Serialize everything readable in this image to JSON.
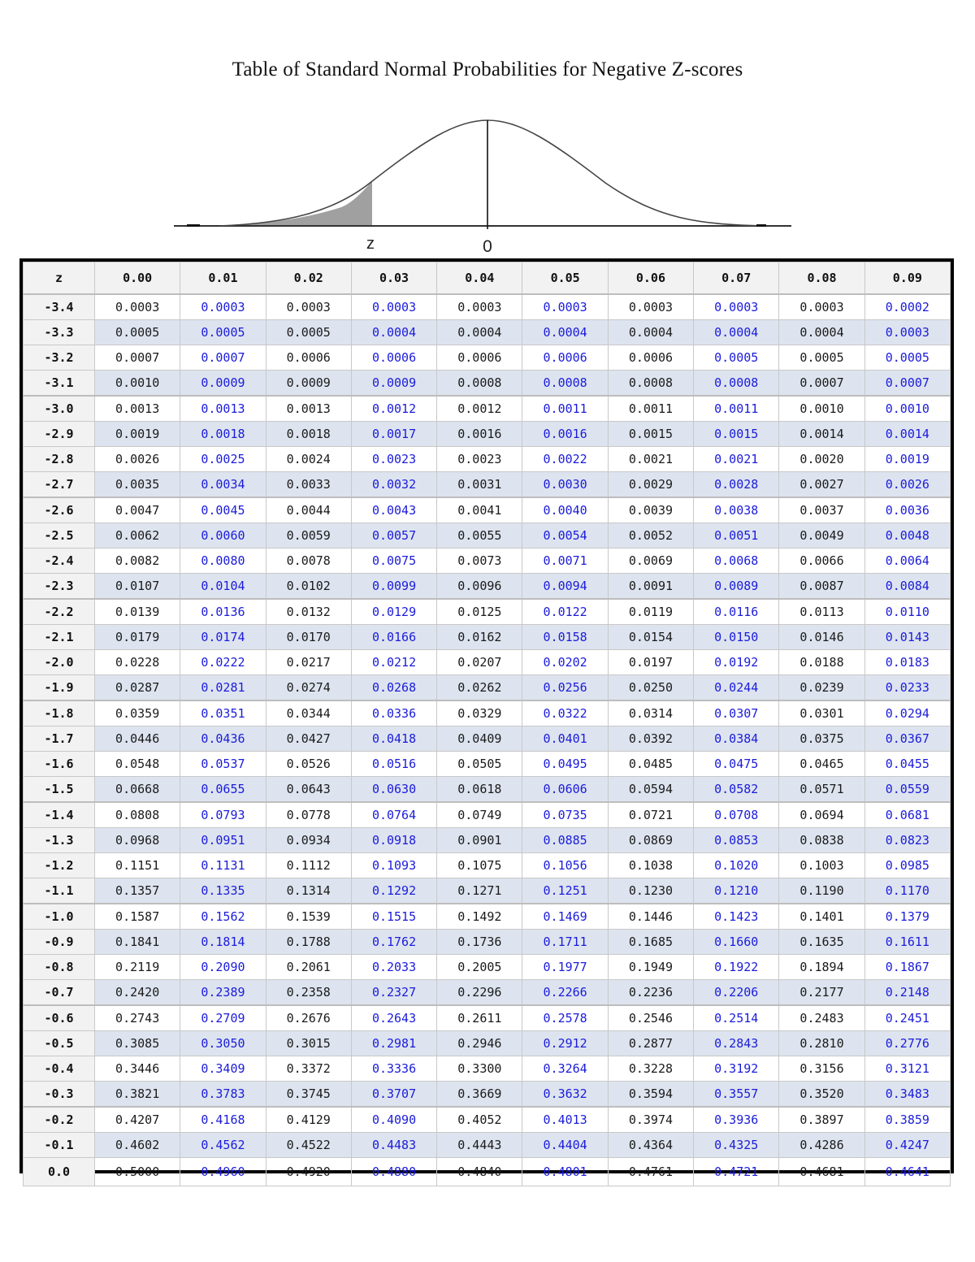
{
  "title": "Table of Standard Normal Probabilities for Negative Z-scores",
  "figure": {
    "shaded_label": "z",
    "center_label": "0",
    "fill_color": "#a0a0a0"
  },
  "table": {
    "header_z": "z",
    "columns": [
      "0.00",
      "0.01",
      "0.02",
      "0.03",
      "0.04",
      "0.05",
      "0.06",
      "0.07",
      "0.08",
      "0.09"
    ],
    "rows": [
      {
        "z": "-3.4",
        "v": [
          "0.0003",
          "0.0003",
          "0.0003",
          "0.0003",
          "0.0003",
          "0.0003",
          "0.0003",
          "0.0003",
          "0.0003",
          "0.0002"
        ]
      },
      {
        "z": "-3.3",
        "v": [
          "0.0005",
          "0.0005",
          "0.0005",
          "0.0004",
          "0.0004",
          "0.0004",
          "0.0004",
          "0.0004",
          "0.0004",
          "0.0003"
        ]
      },
      {
        "z": "-3.2",
        "v": [
          "0.0007",
          "0.0007",
          "0.0006",
          "0.0006",
          "0.0006",
          "0.0006",
          "0.0006",
          "0.0005",
          "0.0005",
          "0.0005"
        ]
      },
      {
        "z": "-3.1",
        "v": [
          "0.0010",
          "0.0009",
          "0.0009",
          "0.0009",
          "0.0008",
          "0.0008",
          "0.0008",
          "0.0008",
          "0.0007",
          "0.0007"
        ]
      },
      {
        "z": "-3.0",
        "v": [
          "0.0013",
          "0.0013",
          "0.0013",
          "0.0012",
          "0.0012",
          "0.0011",
          "0.0011",
          "0.0011",
          "0.0010",
          "0.0010"
        ]
      },
      {
        "z": "-2.9",
        "v": [
          "0.0019",
          "0.0018",
          "0.0018",
          "0.0017",
          "0.0016",
          "0.0016",
          "0.0015",
          "0.0015",
          "0.0014",
          "0.0014"
        ]
      },
      {
        "z": "-2.8",
        "v": [
          "0.0026",
          "0.0025",
          "0.0024",
          "0.0023",
          "0.0023",
          "0.0022",
          "0.0021",
          "0.0021",
          "0.0020",
          "0.0019"
        ]
      },
      {
        "z": "-2.7",
        "v": [
          "0.0035",
          "0.0034",
          "0.0033",
          "0.0032",
          "0.0031",
          "0.0030",
          "0.0029",
          "0.0028",
          "0.0027",
          "0.0026"
        ]
      },
      {
        "z": "-2.6",
        "v": [
          "0.0047",
          "0.0045",
          "0.0044",
          "0.0043",
          "0.0041",
          "0.0040",
          "0.0039",
          "0.0038",
          "0.0037",
          "0.0036"
        ]
      },
      {
        "z": "-2.5",
        "v": [
          "0.0062",
          "0.0060",
          "0.0059",
          "0.0057",
          "0.0055",
          "0.0054",
          "0.0052",
          "0.0051",
          "0.0049",
          "0.0048"
        ]
      },
      {
        "z": "-2.4",
        "v": [
          "0.0082",
          "0.0080",
          "0.0078",
          "0.0075",
          "0.0073",
          "0.0071",
          "0.0069",
          "0.0068",
          "0.0066",
          "0.0064"
        ]
      },
      {
        "z": "-2.3",
        "v": [
          "0.0107",
          "0.0104",
          "0.0102",
          "0.0099",
          "0.0096",
          "0.0094",
          "0.0091",
          "0.0089",
          "0.0087",
          "0.0084"
        ]
      },
      {
        "z": "-2.2",
        "v": [
          "0.0139",
          "0.0136",
          "0.0132",
          "0.0129",
          "0.0125",
          "0.0122",
          "0.0119",
          "0.0116",
          "0.0113",
          "0.0110"
        ]
      },
      {
        "z": "-2.1",
        "v": [
          "0.0179",
          "0.0174",
          "0.0170",
          "0.0166",
          "0.0162",
          "0.0158",
          "0.0154",
          "0.0150",
          "0.0146",
          "0.0143"
        ]
      },
      {
        "z": "-2.0",
        "v": [
          "0.0228",
          "0.0222",
          "0.0217",
          "0.0212",
          "0.0207",
          "0.0202",
          "0.0197",
          "0.0192",
          "0.0188",
          "0.0183"
        ]
      },
      {
        "z": "-1.9",
        "v": [
          "0.0287",
          "0.0281",
          "0.0274",
          "0.0268",
          "0.0262",
          "0.0256",
          "0.0250",
          "0.0244",
          "0.0239",
          "0.0233"
        ]
      },
      {
        "z": "-1.8",
        "v": [
          "0.0359",
          "0.0351",
          "0.0344",
          "0.0336",
          "0.0329",
          "0.0322",
          "0.0314",
          "0.0307",
          "0.0301",
          "0.0294"
        ]
      },
      {
        "z": "-1.7",
        "v": [
          "0.0446",
          "0.0436",
          "0.0427",
          "0.0418",
          "0.0409",
          "0.0401",
          "0.0392",
          "0.0384",
          "0.0375",
          "0.0367"
        ]
      },
      {
        "z": "-1.6",
        "v": [
          "0.0548",
          "0.0537",
          "0.0526",
          "0.0516",
          "0.0505",
          "0.0495",
          "0.0485",
          "0.0475",
          "0.0465",
          "0.0455"
        ]
      },
      {
        "z": "-1.5",
        "v": [
          "0.0668",
          "0.0655",
          "0.0643",
          "0.0630",
          "0.0618",
          "0.0606",
          "0.0594",
          "0.0582",
          "0.0571",
          "0.0559"
        ]
      },
      {
        "z": "-1.4",
        "v": [
          "0.0808",
          "0.0793",
          "0.0778",
          "0.0764",
          "0.0749",
          "0.0735",
          "0.0721",
          "0.0708",
          "0.0694",
          "0.0681"
        ]
      },
      {
        "z": "-1.3",
        "v": [
          "0.0968",
          "0.0951",
          "0.0934",
          "0.0918",
          "0.0901",
          "0.0885",
          "0.0869",
          "0.0853",
          "0.0838",
          "0.0823"
        ]
      },
      {
        "z": "-1.2",
        "v": [
          "0.1151",
          "0.1131",
          "0.1112",
          "0.1093",
          "0.1075",
          "0.1056",
          "0.1038",
          "0.1020",
          "0.1003",
          "0.0985"
        ]
      },
      {
        "z": "-1.1",
        "v": [
          "0.1357",
          "0.1335",
          "0.1314",
          "0.1292",
          "0.1271",
          "0.1251",
          "0.1230",
          "0.1210",
          "0.1190",
          "0.1170"
        ]
      },
      {
        "z": "-1.0",
        "v": [
          "0.1587",
          "0.1562",
          "0.1539",
          "0.1515",
          "0.1492",
          "0.1469",
          "0.1446",
          "0.1423",
          "0.1401",
          "0.1379"
        ]
      },
      {
        "z": "-0.9",
        "v": [
          "0.1841",
          "0.1814",
          "0.1788",
          "0.1762",
          "0.1736",
          "0.1711",
          "0.1685",
          "0.1660",
          "0.1635",
          "0.1611"
        ]
      },
      {
        "z": "-0.8",
        "v": [
          "0.2119",
          "0.2090",
          "0.2061",
          "0.2033",
          "0.2005",
          "0.1977",
          "0.1949",
          "0.1922",
          "0.1894",
          "0.1867"
        ]
      },
      {
        "z": "-0.7",
        "v": [
          "0.2420",
          "0.2389",
          "0.2358",
          "0.2327",
          "0.2296",
          "0.2266",
          "0.2236",
          "0.2206",
          "0.2177",
          "0.2148"
        ]
      },
      {
        "z": "-0.6",
        "v": [
          "0.2743",
          "0.2709",
          "0.2676",
          "0.2643",
          "0.2611",
          "0.2578",
          "0.2546",
          "0.2514",
          "0.2483",
          "0.2451"
        ]
      },
      {
        "z": "-0.5",
        "v": [
          "0.3085",
          "0.3050",
          "0.3015",
          "0.2981",
          "0.2946",
          "0.2912",
          "0.2877",
          "0.2843",
          "0.2810",
          "0.2776"
        ]
      },
      {
        "z": "-0.4",
        "v": [
          "0.3446",
          "0.3409",
          "0.3372",
          "0.3336",
          "0.3300",
          "0.3264",
          "0.3228",
          "0.3192",
          "0.3156",
          "0.3121"
        ]
      },
      {
        "z": "-0.3",
        "v": [
          "0.3821",
          "0.3783",
          "0.3745",
          "0.3707",
          "0.3669",
          "0.3632",
          "0.3594",
          "0.3557",
          "0.3520",
          "0.3483"
        ]
      },
      {
        "z": "-0.2",
        "v": [
          "0.4207",
          "0.4168",
          "0.4129",
          "0.4090",
          "0.4052",
          "0.4013",
          "0.3974",
          "0.3936",
          "0.3897",
          "0.3859"
        ]
      },
      {
        "z": "-0.1",
        "v": [
          "0.4602",
          "0.4562",
          "0.4522",
          "0.4483",
          "0.4443",
          "0.4404",
          "0.4364",
          "0.4325",
          "0.4286",
          "0.4247"
        ]
      },
      {
        "z": "0.0",
        "v": [
          "0.5000",
          "0.4960",
          "0.4920",
          "0.4880",
          "0.4840",
          "0.4801",
          "0.4761",
          "0.4721",
          "0.4681",
          "0.4641"
        ]
      }
    ]
  },
  "colors": {
    "odd_column_text": "#1b1bdc",
    "even_column_text": "#1a1a1a",
    "stripe_row_bg": "#dde4ef",
    "header_bg": "#f2f2f2",
    "outer_border": "#000000"
  }
}
